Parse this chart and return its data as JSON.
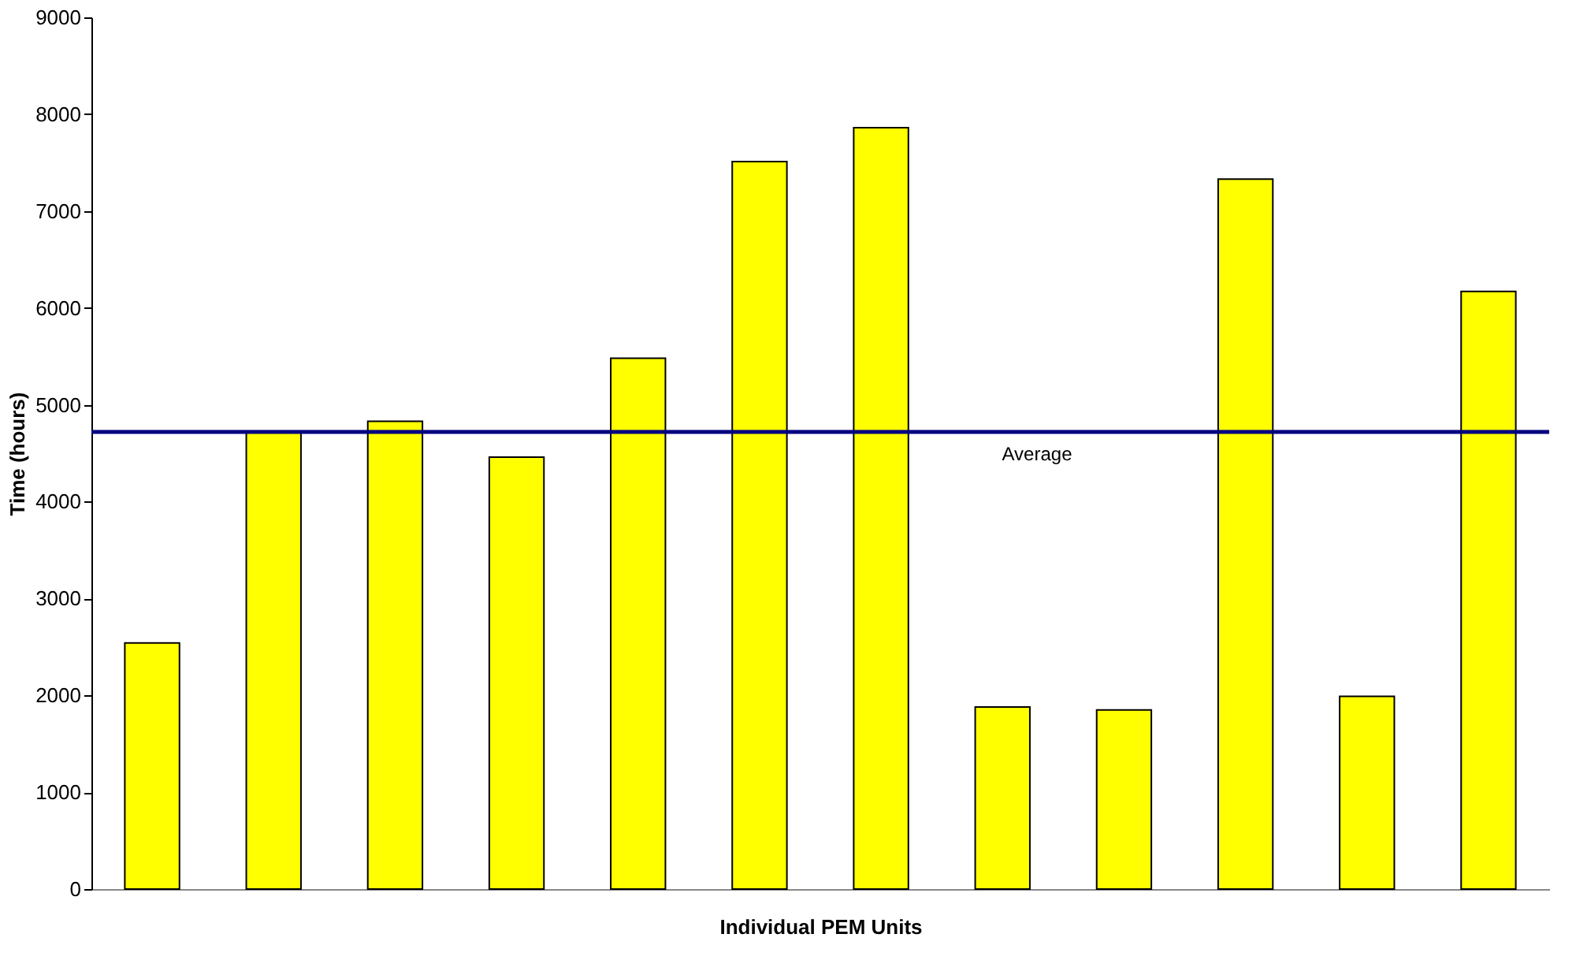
{
  "chart_data": {
    "type": "bar",
    "xlabel": "Individual PEM Units",
    "ylabel": "Time (hours)",
    "categories": [
      null,
      null,
      null,
      null,
      null,
      null,
      null,
      null,
      null,
      null,
      null,
      null
    ],
    "values": [
      2540,
      4720,
      4830,
      4460,
      5480,
      7510,
      7860,
      1880,
      1850,
      7330,
      1990,
      6170
    ],
    "color": "#ffff00",
    "ref_lines": [
      {
        "axis": "y",
        "value": 4720,
        "label": "Average",
        "color": "#000080",
        "line_style": "solid"
      }
    ],
    "ylim": [
      0,
      9000
    ],
    "yticks": [
      0,
      1000,
      2000,
      3000,
      4000,
      5000,
      6000,
      7000,
      8000,
      9000
    ],
    "grid": false
  }
}
